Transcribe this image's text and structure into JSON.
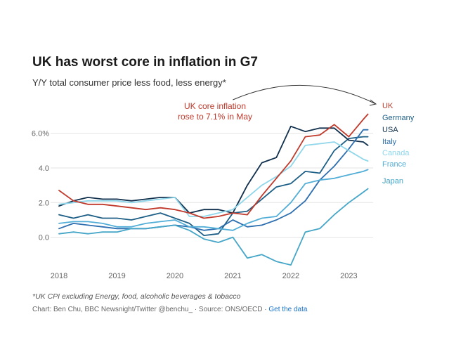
{
  "title": "UK has worst core in inflation in G7",
  "subtitle": "Y/Y total consumer price less food, less energy*",
  "footnote": "*UK CPI excluding Energy, food, alcoholic beverages & tobacco",
  "credit": {
    "text": "Chart: Ben Chu, BBC Newsnight/Twitter @benchu_ · Source: ONS/OECD · ",
    "link": "Get the data"
  },
  "chart_data": {
    "type": "line",
    "title": "UK has worst core in inflation in G7",
    "subtitle": "Y/Y total consumer price less food, less energy*",
    "xlabel": "",
    "ylabel": "",
    "xlim": [
      2018.0,
      2023.42
    ],
    "ylim": [
      -1.8,
      7.0
    ],
    "y_ticks": [
      0.0,
      2.0,
      4.0,
      6.0
    ],
    "y_tick_labels": [
      "0.0",
      "2.0",
      "4.0",
      "6.0%"
    ],
    "x_ticks": [
      2018,
      2019,
      2020,
      2021,
      2022,
      2023
    ],
    "x_tick_labels": [
      "2018",
      "2019",
      "2020",
      "2021",
      "2022",
      "2023"
    ],
    "grid": "horizontal",
    "annotation": {
      "lines": [
        "UK core inflation",
        "rose to 7.1% in May"
      ],
      "color": "#c0392b",
      "arrow_from": [
        2021.0,
        6.9
      ],
      "arrow_to": [
        2023.33,
        7.0
      ]
    },
    "series": [
      {
        "name": "UK",
        "color": "#c0392b",
        "x": [
          2018.0,
          2018.25,
          2018.5,
          2018.75,
          2019.0,
          2019.25,
          2019.5,
          2019.75,
          2020.0,
          2020.25,
          2020.5,
          2020.75,
          2021.0,
          2021.25,
          2021.5,
          2021.75,
          2022.0,
          2022.25,
          2022.5,
          2022.75,
          2023.0,
          2023.25,
          2023.33
        ],
        "y": [
          2.7,
          2.1,
          1.9,
          1.9,
          1.8,
          1.7,
          1.6,
          1.7,
          1.6,
          1.4,
          1.1,
          1.2,
          1.4,
          1.3,
          2.4,
          3.4,
          4.4,
          5.8,
          5.9,
          6.5,
          5.8,
          6.8,
          7.1
        ]
      },
      {
        "name": "Germany",
        "color": "#1d5f86",
        "x": [
          2018.0,
          2018.25,
          2018.5,
          2018.75,
          2019.0,
          2019.25,
          2019.5,
          2019.75,
          2020.0,
          2020.25,
          2020.5,
          2020.75,
          2021.0,
          2021.25,
          2021.5,
          2021.75,
          2022.0,
          2022.25,
          2022.5,
          2022.75,
          2023.0,
          2023.25,
          2023.33
        ],
        "y": [
          1.3,
          1.1,
          1.3,
          1.1,
          1.1,
          1.0,
          1.2,
          1.4,
          1.1,
          0.8,
          0.1,
          0.2,
          1.4,
          1.5,
          2.2,
          2.9,
          3.1,
          3.8,
          3.7,
          5.0,
          5.7,
          5.8,
          5.8
        ]
      },
      {
        "name": "USA",
        "color": "#10304d",
        "x": [
          2018.0,
          2018.25,
          2018.5,
          2018.75,
          2019.0,
          2019.25,
          2019.5,
          2019.75,
          2020.0,
          2020.25,
          2020.5,
          2020.75,
          2021.0,
          2021.25,
          2021.5,
          2021.75,
          2022.0,
          2022.25,
          2022.5,
          2022.75,
          2023.0,
          2023.25,
          2023.33
        ],
        "y": [
          1.8,
          2.1,
          2.3,
          2.2,
          2.2,
          2.1,
          2.2,
          2.3,
          2.3,
          1.4,
          1.6,
          1.6,
          1.4,
          3.0,
          4.3,
          4.6,
          6.4,
          6.1,
          6.3,
          6.3,
          5.6,
          5.5,
          5.3
        ]
      },
      {
        "name": "Italy",
        "color": "#2d6fb0",
        "x": [
          2018.0,
          2018.25,
          2018.5,
          2018.75,
          2019.0,
          2019.25,
          2019.5,
          2019.75,
          2020.0,
          2020.25,
          2020.5,
          2020.75,
          2021.0,
          2021.25,
          2021.5,
          2021.75,
          2022.0,
          2022.25,
          2022.5,
          2022.75,
          2023.0,
          2023.25,
          2023.33
        ],
        "y": [
          0.5,
          0.8,
          0.7,
          0.6,
          0.5,
          0.5,
          0.5,
          0.6,
          0.7,
          0.6,
          0.4,
          0.5,
          1.0,
          0.6,
          0.7,
          1.0,
          1.4,
          2.1,
          3.3,
          4.1,
          5.1,
          6.2,
          6.2
        ]
      },
      {
        "name": "Canada",
        "color": "#8fd6ea",
        "x": [
          2018.0,
          2018.25,
          2018.5,
          2018.75,
          2019.0,
          2019.25,
          2019.5,
          2019.75,
          2020.0,
          2020.25,
          2020.5,
          2020.75,
          2021.0,
          2021.25,
          2021.5,
          2021.75,
          2022.0,
          2022.25,
          2022.5,
          2022.75,
          2023.0,
          2023.25,
          2023.33
        ],
        "y": [
          1.9,
          2.0,
          2.1,
          2.1,
          2.1,
          2.0,
          2.1,
          2.2,
          2.3,
          1.2,
          1.2,
          1.4,
          1.6,
          2.3,
          3.0,
          3.5,
          4.1,
          5.3,
          5.4,
          5.5,
          5.0,
          4.5,
          4.4
        ]
      },
      {
        "name": "France",
        "color": "#52aed7",
        "x": [
          2018.0,
          2018.25,
          2018.5,
          2018.75,
          2019.0,
          2019.25,
          2019.5,
          2019.75,
          2020.0,
          2020.25,
          2020.5,
          2020.75,
          2021.0,
          2021.25,
          2021.5,
          2021.75,
          2022.0,
          2022.25,
          2022.5,
          2022.75,
          2023.0,
          2023.25,
          2023.33
        ],
        "y": [
          0.8,
          0.9,
          0.9,
          0.8,
          0.6,
          0.6,
          0.8,
          0.9,
          1.0,
          0.6,
          0.6,
          0.5,
          0.4,
          0.8,
          1.1,
          1.2,
          2.0,
          3.1,
          3.3,
          3.4,
          3.6,
          3.8,
          3.9
        ]
      },
      {
        "name": "Japan",
        "color": "#45a6c8",
        "x": [
          2018.0,
          2018.25,
          2018.5,
          2018.75,
          2019.0,
          2019.25,
          2019.5,
          2019.75,
          2020.0,
          2020.25,
          2020.5,
          2020.75,
          2021.0,
          2021.25,
          2021.5,
          2021.75,
          2022.0,
          2022.25,
          2022.5,
          2022.75,
          2023.0,
          2023.25,
          2023.33
        ],
        "y": [
          0.2,
          0.3,
          0.2,
          0.3,
          0.3,
          0.5,
          0.5,
          0.6,
          0.7,
          0.4,
          -0.1,
          -0.3,
          0.0,
          -1.2,
          -1.0,
          -1.4,
          -1.6,
          0.3,
          0.5,
          1.3,
          2.0,
          2.6,
          2.8
        ]
      }
    ]
  }
}
